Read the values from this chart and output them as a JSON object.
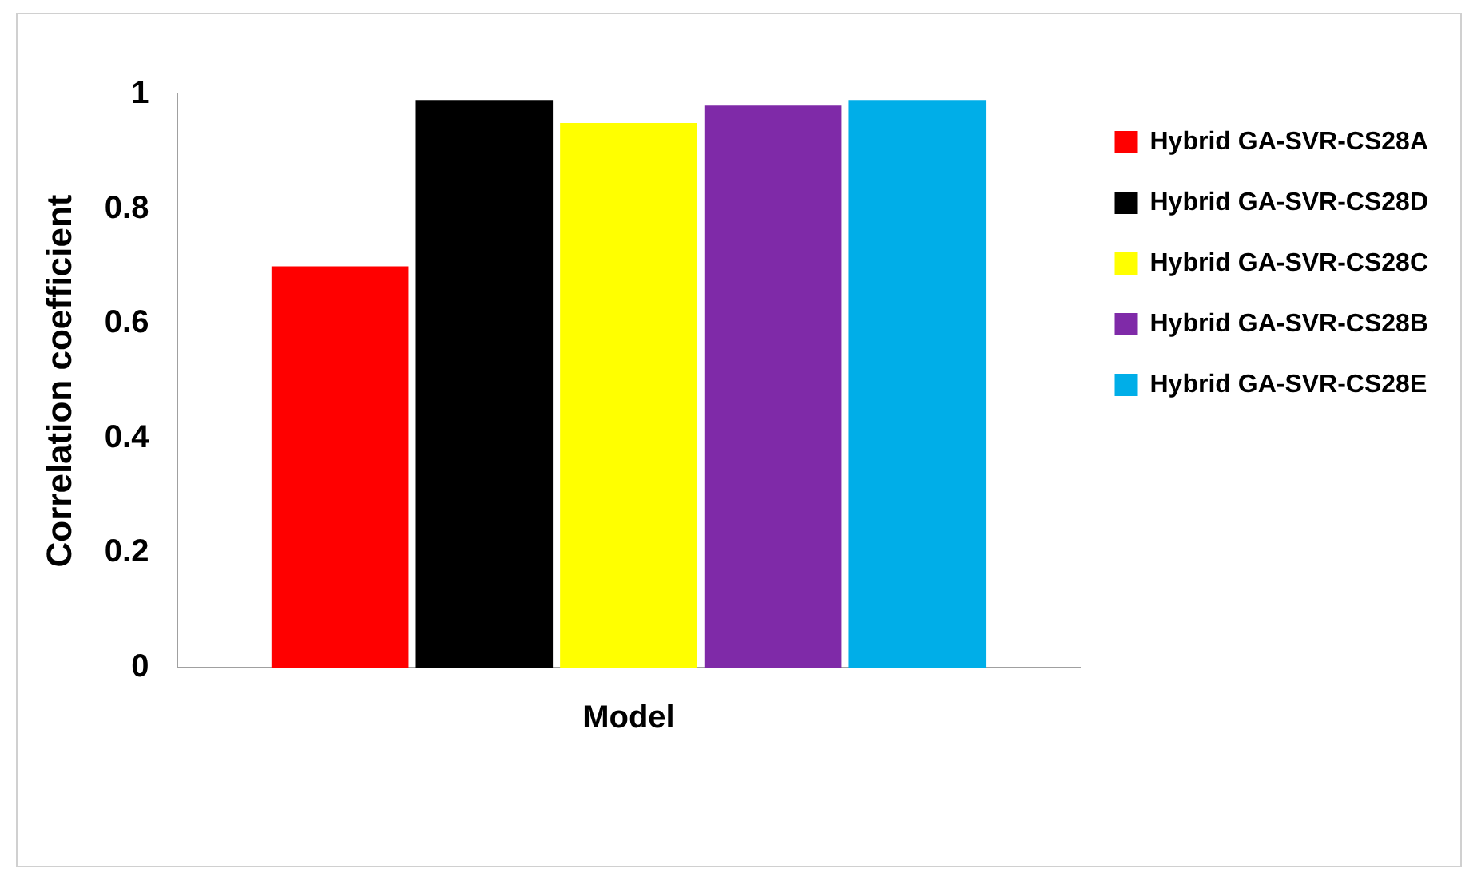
{
  "chart_data": {
    "type": "bar",
    "ylabel": "Correlation coefficient",
    "categories": [
      "Model"
    ],
    "series": [
      {
        "name": "Hybrid GA-SVR-CS28A",
        "color": "#ff0000",
        "values": [
          0.7
        ]
      },
      {
        "name": "Hybrid GA-SVR-CS28D",
        "color": "#000000",
        "values": [
          0.99
        ]
      },
      {
        "name": "Hybrid GA-SVR-CS28C",
        "color": "#ffff00",
        "values": [
          0.95
        ]
      },
      {
        "name": "Hybrid GA-SVR-CS28B",
        "color": "#7f2aa8",
        "values": [
          0.98
        ]
      },
      {
        "name": "Hybrid GA-SVR-CS28E",
        "color": "#00aee8",
        "values": [
          0.99
        ]
      }
    ],
    "ylim": [
      0,
      1
    ],
    "yticks": [
      0,
      0.2,
      0.4,
      0.6,
      0.8,
      1
    ],
    "grid": false,
    "legend": "right"
  }
}
